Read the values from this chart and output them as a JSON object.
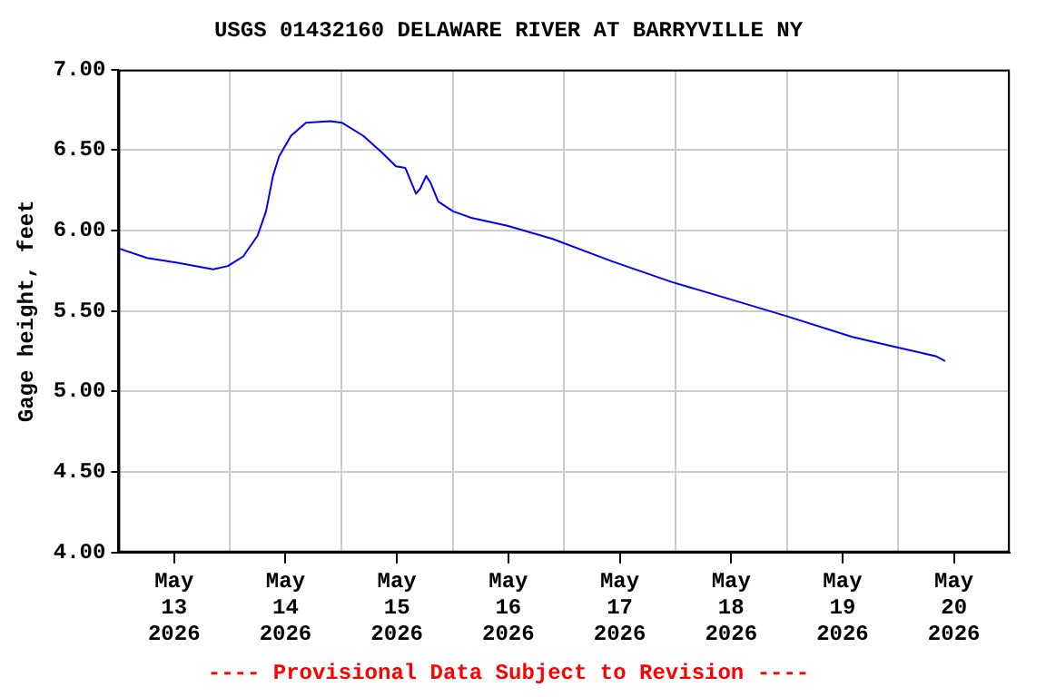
{
  "chart_data": {
    "type": "line",
    "title": "USGS 01432160 DELAWARE RIVER AT BARRYVILLE NY",
    "ylabel": "Gage height, feet",
    "annotations": [
      "---- Provisional Data Subject to Revision ----"
    ],
    "x": [
      "2026-05-13T00:00",
      "2026-05-13T06:12",
      "2026-05-13T12:42",
      "2026-05-13T20:24",
      "2026-05-13T23:36",
      "2026-05-14T02:54",
      "2026-05-14T06:00",
      "2026-05-14T07:48",
      "2026-05-14T09:18",
      "2026-05-14T10:36",
      "2026-05-14T13:12",
      "2026-05-14T16:24",
      "2026-05-14T21:36",
      "2026-05-15T00:12",
      "2026-05-15T04:42",
      "2026-05-15T08:36",
      "2026-05-15T11:48",
      "2026-05-15T13:48",
      "2026-05-15T16:06",
      "2026-05-15T17:00",
      "2026-05-15T18:18",
      "2026-05-15T19:12",
      "2026-05-15T20:54",
      "2026-05-16T00:06",
      "2026-05-16T04:00",
      "2026-05-16T11:48",
      "2026-05-16T21:24",
      "2026-05-17T10:18",
      "2026-05-17T23:18",
      "2026-05-18T12:12",
      "2026-05-18T23:48",
      "2026-05-19T14:06",
      "2026-05-20T00:24",
      "2026-05-20T08:06",
      "2026-05-20T10:06"
    ],
    "series": [
      {
        "color": "#0000ff",
        "values": [
          5.89,
          5.83,
          5.8,
          5.76,
          5.78,
          5.84,
          5.97,
          6.12,
          6.34,
          6.46,
          6.59,
          6.67,
          6.68,
          6.67,
          6.59,
          6.49,
          6.4,
          6.39,
          6.23,
          6.26,
          6.34,
          6.3,
          6.18,
          6.12,
          6.08,
          6.03,
          5.95,
          5.81,
          5.68,
          5.57,
          5.47,
          5.34,
          5.27,
          5.22,
          5.19
        ]
      }
    ],
    "xlim": [
      "2026-05-13T00:00",
      "2026-05-21T00:00"
    ],
    "xticks": [
      {
        "value": "2026-05-13T00:00",
        "label": null
      },
      {
        "value": "2026-05-13T12:00",
        "label": "May 13 2026"
      },
      {
        "value": "2026-05-14T00:00",
        "label": null
      },
      {
        "value": "2026-05-14T12:00",
        "label": "May 14 2026"
      },
      {
        "value": "2026-05-15T00:00",
        "label": null
      },
      {
        "value": "2026-05-15T12:00",
        "label": "May 15 2026"
      },
      {
        "value": "2026-05-16T00:00",
        "label": null
      },
      {
        "value": "2026-05-16T12:00",
        "label": "May 16 2026"
      },
      {
        "value": "2026-05-17T00:00",
        "label": null
      },
      {
        "value": "2026-05-17T12:00",
        "label": "May 17 2026"
      },
      {
        "value": "2026-05-18T00:00",
        "label": null
      },
      {
        "value": "2026-05-18T12:00",
        "label": "May 18 2026"
      },
      {
        "value": "2026-05-19T00:00",
        "label": null
      },
      {
        "value": "2026-05-19T12:00",
        "label": "May 19 2026"
      },
      {
        "value": "2026-05-20T00:00",
        "label": null
      },
      {
        "value": "2026-05-20T12:00",
        "label": "May 20 2026"
      },
      {
        "value": "2026-05-21T00:00",
        "label": null
      }
    ],
    "ylim": [
      4,
      7
    ],
    "yticks": [
      {
        "value": 4,
        "label": "4.00"
      },
      {
        "value": 4.5,
        "label": "4.50"
      },
      {
        "value": 5,
        "label": "5.00"
      },
      {
        "value": 5.5,
        "label": "5.50"
      },
      {
        "value": 6,
        "label": "6.00"
      },
      {
        "value": 6.5,
        "label": "6.50"
      },
      {
        "value": 7,
        "label": "7.00"
      }
    ],
    "grid": true,
    "marker": "none",
    "line_style": "solid"
  }
}
